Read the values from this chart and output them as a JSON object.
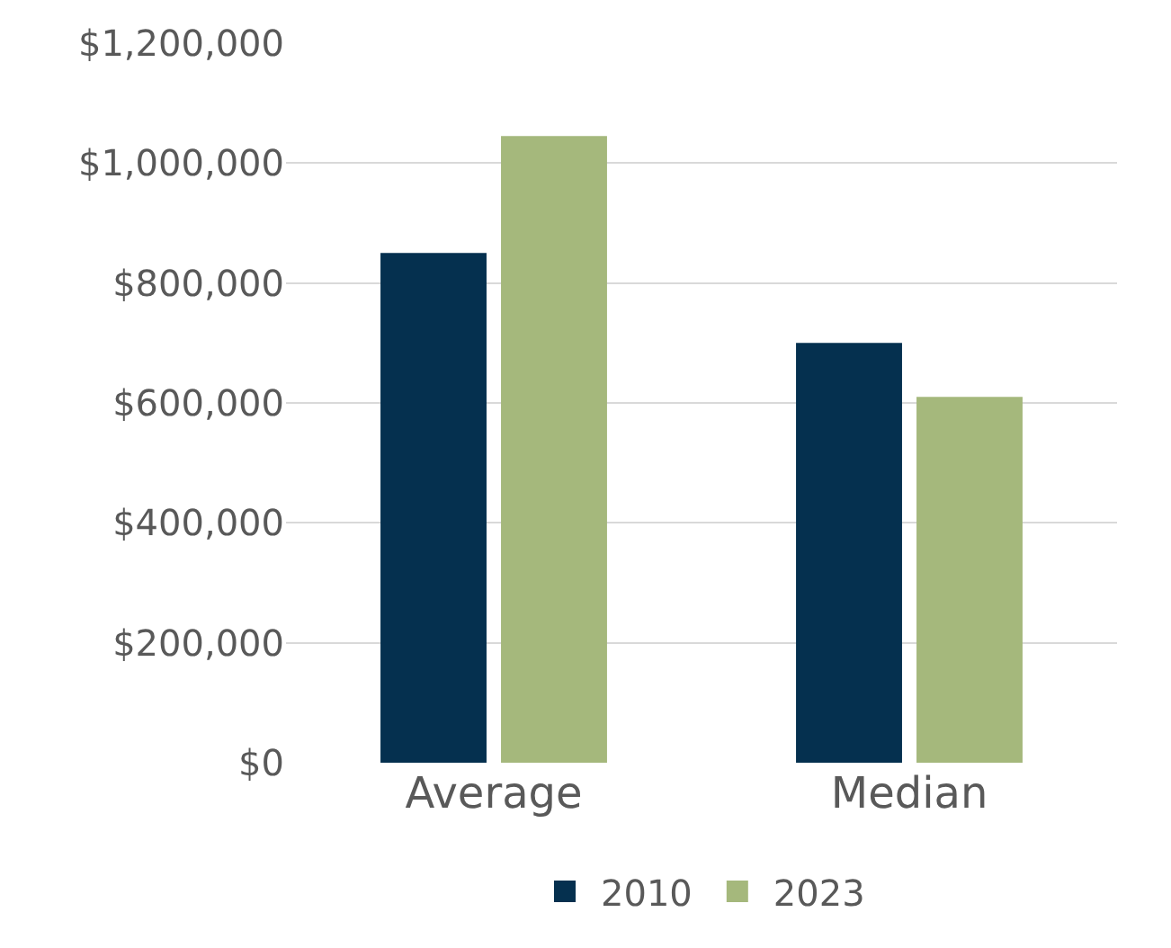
{
  "chart_data": {
    "type": "bar",
    "categories": [
      "Average",
      "Median"
    ],
    "series": [
      {
        "name": "2010",
        "color": "#05304f",
        "values": [
          850000,
          700000
        ]
      },
      {
        "name": "2023",
        "color": "#a5b87c",
        "values": [
          1045000,
          610000
        ]
      }
    ],
    "ylim": [
      0,
      1200000
    ],
    "yticks": [
      {
        "value": 0,
        "label": "$0"
      },
      {
        "value": 200000,
        "label": "$200,000"
      },
      {
        "value": 400000,
        "label": "$400,000"
      },
      {
        "value": 600000,
        "label": "$600,000"
      },
      {
        "value": 800000,
        "label": "$800,000"
      },
      {
        "value": 1000000,
        "label": "$1,000,000"
      },
      {
        "value": 1200000,
        "label": "$1,200,000"
      }
    ],
    "grid": "y",
    "legend": "bottom"
  }
}
